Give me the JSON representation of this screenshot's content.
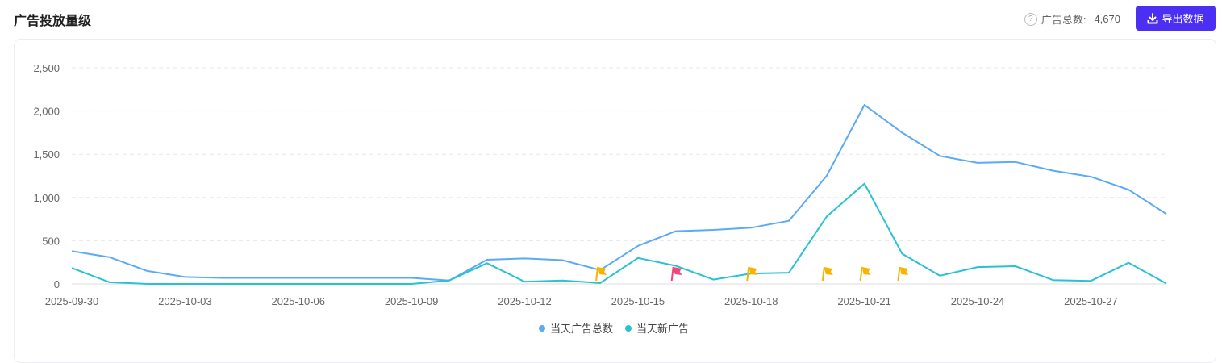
{
  "header": {
    "title": "广告投放量级",
    "total_label": "广告总数:",
    "total_value": "4,670",
    "export_label": "导出数据"
  },
  "icons": {
    "help": "help-circle-icon",
    "export": "download-icon",
    "event": "flag-icon"
  },
  "colors": {
    "accent": "#4b2ff2",
    "series_total": "#5aaaf7",
    "series_new": "#29c1d4",
    "flag_yellow": "#f7b500",
    "flag_pink": "#f0467a"
  },
  "chart_data": {
    "type": "line",
    "x": [
      "2025-09-30",
      "2025-10-01",
      "2025-10-02",
      "2025-10-03",
      "2025-10-04",
      "2025-10-05",
      "2025-10-06",
      "2025-10-07",
      "2025-10-08",
      "2025-10-09",
      "2025-10-10",
      "2025-10-11",
      "2025-10-12",
      "2025-10-13",
      "2025-10-14",
      "2025-10-15",
      "2025-10-16",
      "2025-10-17",
      "2025-10-18",
      "2025-10-19",
      "2025-10-20",
      "2025-10-21",
      "2025-10-22",
      "2025-10-23",
      "2025-10-24",
      "2025-10-25",
      "2025-10-26",
      "2025-10-27",
      "2025-10-28",
      "2025-10-29"
    ],
    "xticks": [
      "2025-09-30",
      "2025-10-03",
      "2025-10-06",
      "2025-10-09",
      "2025-10-12",
      "2025-10-15",
      "2025-10-18",
      "2025-10-21",
      "2025-10-24",
      "2025-10-27"
    ],
    "yticks": [
      "0",
      "500",
      "1,000",
      "1,500",
      "2,000",
      "2,500"
    ],
    "ylim": [
      0,
      2500
    ],
    "grid": true,
    "legend_position": "bottom-center",
    "series": [
      {
        "name": "当天广告总数",
        "color": "#5aaaf7",
        "values": [
          380,
          310,
          150,
          80,
          70,
          70,
          70,
          70,
          70,
          70,
          40,
          280,
          295,
          275,
          160,
          440,
          610,
          625,
          650,
          730,
          1250,
          2070,
          1750,
          1480,
          1400,
          1410,
          1310,
          1240,
          1090,
          810
        ]
      },
      {
        "name": "当天新广告",
        "color": "#29c1d4",
        "values": [
          185,
          20,
          0,
          0,
          0,
          0,
          0,
          0,
          0,
          0,
          40,
          240,
          25,
          40,
          10,
          300,
          210,
          50,
          120,
          130,
          780,
          1160,
          350,
          95,
          195,
          205,
          45,
          35,
          245,
          5
        ]
      }
    ],
    "event_markers": [
      {
        "x": "2025-10-14",
        "color": "yellow"
      },
      {
        "x": "2025-10-16",
        "color": "pink"
      },
      {
        "x": "2025-10-18",
        "color": "yellow"
      },
      {
        "x": "2025-10-20",
        "color": "yellow"
      },
      {
        "x": "2025-10-21",
        "color": "yellow"
      },
      {
        "x": "2025-10-22",
        "color": "yellow"
      }
    ]
  }
}
